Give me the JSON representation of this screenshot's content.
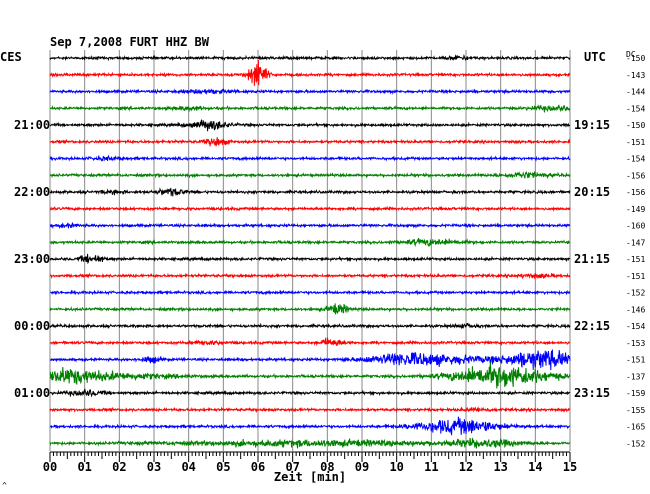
{
  "chart_data": {
    "type": "seismogram",
    "title": "Sep 7,2008   FURT HHZ BW",
    "left_label": "CES",
    "right_label": "UTC",
    "dc_label": "DC",
    "xlabel": "Zeit [min]",
    "corner_mark": "^",
    "x_ticks": [
      "00",
      "01",
      "02",
      "03",
      "04",
      "05",
      "06",
      "07",
      "08",
      "09",
      "10",
      "11",
      "12",
      "13",
      "14",
      "15"
    ],
    "xlim": [
      0,
      15
    ],
    "left_time_labels": [
      {
        "trace": 4,
        "label": "21:00"
      },
      {
        "trace": 8,
        "label": "22:00"
      },
      {
        "trace": 12,
        "label": "23:00"
      },
      {
        "trace": 16,
        "label": "00:00"
      },
      {
        "trace": 20,
        "label": "01:00"
      }
    ],
    "right_time_labels": [
      {
        "trace": 4,
        "label": "19:15"
      },
      {
        "trace": 8,
        "label": "20:15"
      },
      {
        "trace": 12,
        "label": "21:15"
      },
      {
        "trace": 16,
        "label": "22:15"
      },
      {
        "trace": 20,
        "label": "23:15"
      }
    ],
    "colors": [
      "#000000",
      "#ff0000",
      "#0000ff",
      "#007f00"
    ],
    "traces": [
      {
        "dc": "-150",
        "events": [
          [
            11.8,
            0.35,
            1.2
          ]
        ]
      },
      {
        "dc": "-143",
        "events": [
          [
            6.0,
            0.25,
            10
          ]
        ]
      },
      {
        "dc": "-144",
        "events": [
          [
            4.5,
            0.8,
            1.0
          ]
        ]
      },
      {
        "dc": "-154",
        "events": [
          [
            4.0,
            0.4,
            1.2
          ],
          [
            14.5,
            0.6,
            1.6
          ]
        ]
      },
      {
        "dc": "-150",
        "events": [
          [
            4.6,
            0.5,
            3.5
          ]
        ]
      },
      {
        "dc": "-151",
        "events": [
          [
            4.8,
            0.3,
            3.0
          ]
        ]
      },
      {
        "dc": "-154",
        "events": [
          [
            1.6,
            0.4,
            1.0
          ]
        ]
      },
      {
        "dc": "-156",
        "events": [
          [
            13.7,
            0.6,
            2.0
          ]
        ]
      },
      {
        "dc": "-156",
        "events": [
          [
            3.5,
            0.4,
            2.4
          ],
          [
            1.8,
            0.3,
            1.0
          ]
        ]
      },
      {
        "dc": "-149",
        "events": []
      },
      {
        "dc": "-160",
        "events": [
          [
            0.5,
            0.3,
            1.0
          ]
        ]
      },
      {
        "dc": "-147",
        "events": [
          [
            11.0,
            0.8,
            2.0
          ]
        ]
      },
      {
        "dc": "-151",
        "events": [
          [
            1.2,
            0.3,
            3.0
          ]
        ]
      },
      {
        "dc": "-151",
        "events": [
          [
            14.0,
            0.5,
            1.2
          ]
        ]
      },
      {
        "dc": "-152",
        "events": []
      },
      {
        "dc": "-146",
        "events": [
          [
            8.3,
            0.3,
            3.5
          ]
        ]
      },
      {
        "dc": "-154",
        "events": [
          [
            12.0,
            0.3,
            1.0
          ]
        ]
      },
      {
        "dc": "-153",
        "events": [
          [
            8.1,
            0.3,
            3.0
          ],
          [
            4.5,
            0.5,
            1.0
          ]
        ]
      },
      {
        "dc": "-151",
        "events": [
          [
            11.0,
            1.6,
            3.5
          ],
          [
            14.2,
            1.0,
            7.0
          ],
          [
            2.9,
            0.3,
            2.0
          ],
          [
            10.0,
            0.8,
            2.0
          ]
        ]
      },
      {
        "dc": "-137",
        "events": [
          [
            0.5,
            0.8,
            5.0
          ],
          [
            13.0,
            1.3,
            8.0
          ],
          [
            2.0,
            1.5,
            2.0
          ]
        ]
      },
      {
        "dc": "-159",
        "events": [
          [
            1.0,
            0.5,
            2.0
          ]
        ]
      },
      {
        "dc": "-155",
        "events": [
          [
            12.4,
            0.4,
            1.0
          ]
        ]
      },
      {
        "dc": "-165",
        "events": [
          [
            11.8,
            1.1,
            5.5
          ]
        ]
      },
      {
        "dc": "-152",
        "events": [
          [
            7.5,
            3.5,
            2.0
          ],
          [
            12.5,
            1.0,
            2.5
          ]
        ]
      }
    ]
  }
}
